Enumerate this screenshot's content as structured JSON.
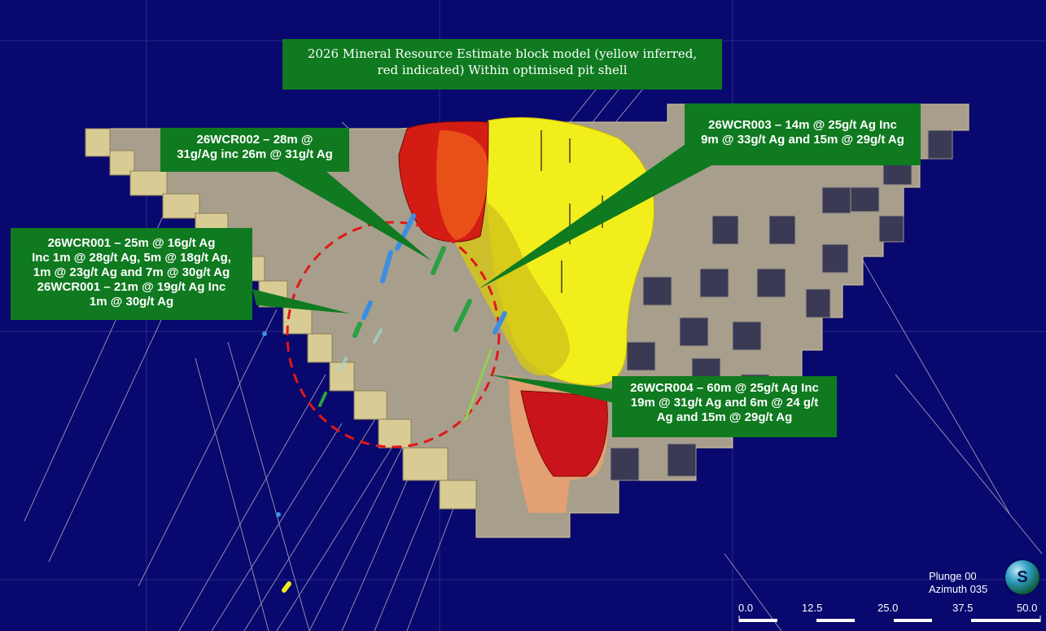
{
  "title_box": {
    "text": "2026 Mineral Resource Estimate block model (yellow inferred,\nred indicated) Within optimised pit shell"
  },
  "callouts": [
    {
      "id": "26WCR002",
      "text": "26WCR002 – 28m @\n31g/Ag inc 26m @ 31g/t Ag"
    },
    {
      "id": "26WCR003",
      "text": "26WCR003 – 14m @ 25g/t Ag Inc\n9m @ 33g/t Ag and 15m @ 29g/t Ag"
    },
    {
      "id": "26WCR001",
      "text": "26WCR001 – 25m @ 16g/t Ag\nInc 1m @ 28g/t Ag, 5m @ 18g/t Ag,\n1m @ 23g/t Ag and 7m @ 30g/t Ag\n26WCR001 – 21m @ 19g/t Ag Inc\n1m @ 30g/t Ag"
    },
    {
      "id": "26WCR004",
      "text": "26WCR004 – 60m @ 25g/t Ag Inc\n19m @ 31g/t Ag and 6m @ 24 g/t\nAg and 15m @ 29g/t Ag"
    }
  ],
  "view": {
    "plunge": "Plunge 00",
    "azimuth": "Azimuth 035"
  },
  "scale_bar": {
    "ticks": [
      "0.0",
      "12.5",
      "25.0",
      "37.5",
      "50.0"
    ]
  },
  "logo": {
    "text": "S"
  },
  "colors": {
    "background": "#08086e",
    "pit_shell": "#a89e8c",
    "pit_bench": "#d9cb94",
    "inferred": "#f2ee1c",
    "indicated": "#d21c14",
    "callout_bg": "#0f7a1f",
    "drill_circle": "#e01818"
  },
  "icons": [
    "sphere-logo-icon"
  ]
}
